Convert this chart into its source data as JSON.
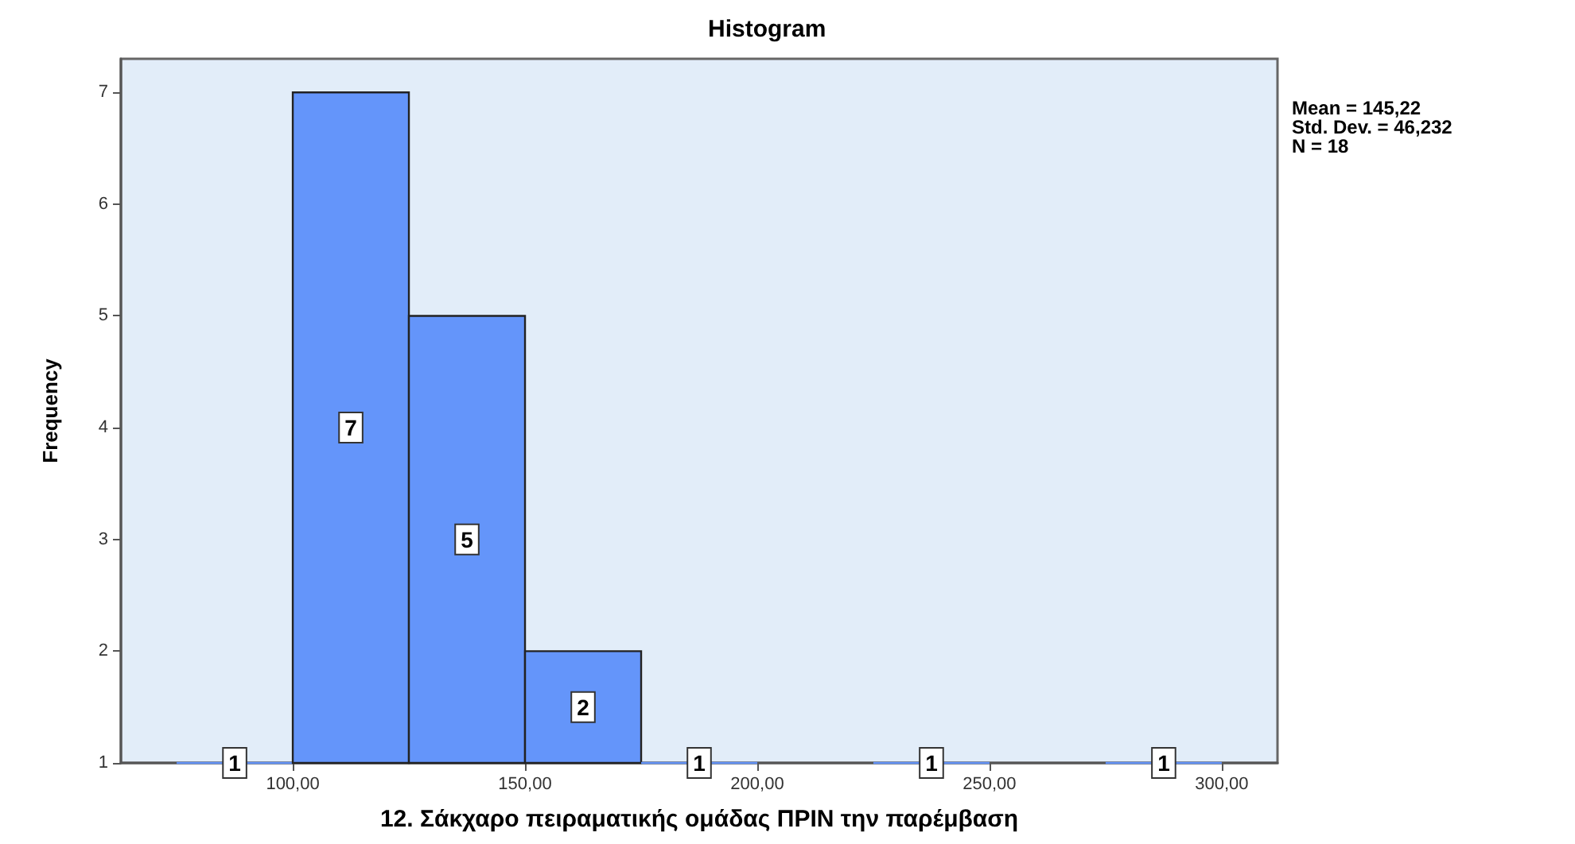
{
  "chart_data": {
    "type": "histogram",
    "title": "Histogram",
    "xlabel": "12. Σάκχαρο πειραματικής ομάδας ΠΡΙΝ την παρέμβαση",
    "ylabel": "Frequency",
    "bins": [
      75,
      100,
      125,
      150,
      175,
      200,
      225,
      250,
      275,
      300
    ],
    "values": [
      1,
      7,
      5,
      2,
      1,
      null,
      1,
      null,
      1
    ],
    "color": "#6495fa",
    "xlim": [
      63,
      312
    ],
    "xticks": [
      {
        "value": 100,
        "label": "100,00"
      },
      {
        "value": 150,
        "label": "150,00"
      },
      {
        "value": 200,
        "label": "200,00"
      },
      {
        "value": 250,
        "label": "250,00"
      },
      {
        "value": 300,
        "label": "300,00"
      }
    ],
    "ylim": [
      1,
      7.3
    ],
    "yticks": [
      1,
      2,
      3,
      4,
      5,
      6,
      7
    ],
    "data_labels": true,
    "grid": false,
    "annotations": [
      "Mean = 145,22",
      "Std. Dev. = 46,232",
      "N = 18"
    ]
  }
}
